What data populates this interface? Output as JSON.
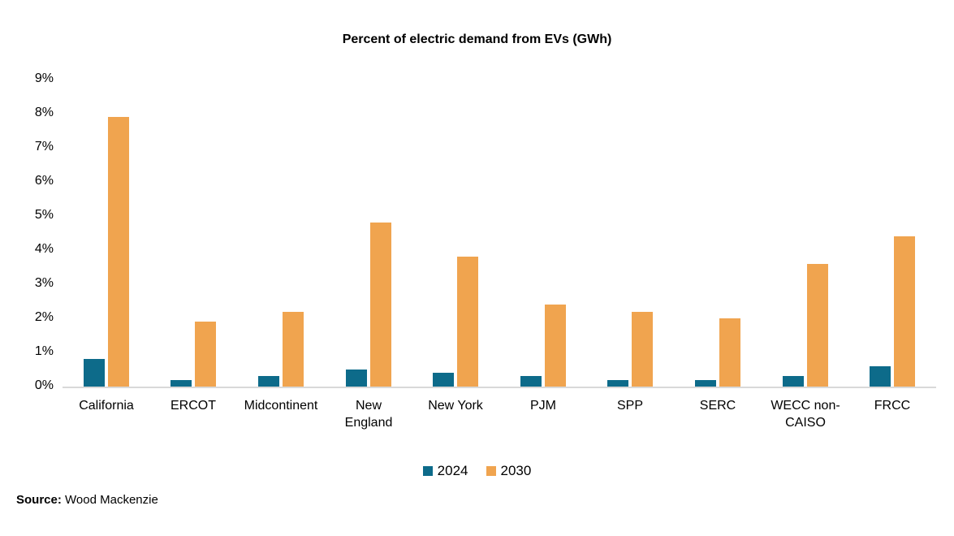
{
  "chart_data": {
    "type": "bar",
    "title": "Percent of electric demand from EVs (GWh)",
    "categories": [
      "California",
      "ERCOT",
      "Midcontinent",
      "New\nEngland",
      "New York",
      "PJM",
      "SPP",
      "SERC",
      "WECC non-\nCAISO",
      "FRCC"
    ],
    "series": [
      {
        "name": "2024",
        "color": "#0d6b8a",
        "values": [
          0.8,
          0.2,
          0.3,
          0.5,
          0.4,
          0.3,
          0.2,
          0.2,
          0.3,
          0.6
        ]
      },
      {
        "name": "2030",
        "color": "#f0a44f",
        "values": [
          7.9,
          1.9,
          2.2,
          4.8,
          3.8,
          2.4,
          2.2,
          2.0,
          3.6,
          4.4
        ]
      }
    ],
    "xlabel": "",
    "ylabel": "",
    "ylim": [
      0,
      9
    ],
    "ytick_step": 1,
    "ytick_format": "percent",
    "ytick_labels": [
      "0%",
      "1%",
      "2%",
      "3%",
      "4%",
      "5%",
      "6%",
      "7%",
      "8%",
      "9%"
    ],
    "grid": false,
    "legend_position": "bottom",
    "axis_line_color": "#d9d9d9"
  },
  "source": {
    "label": "Source:",
    "text": " Wood Mackenzie"
  }
}
